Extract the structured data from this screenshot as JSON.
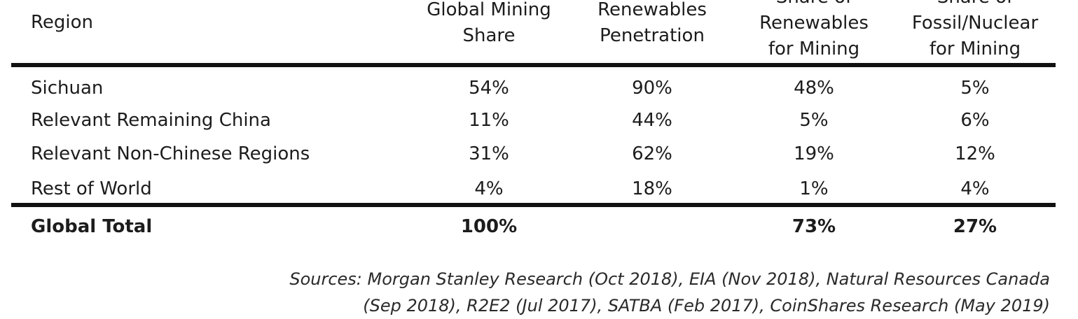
{
  "header": {
    "region": "Region",
    "global_mining_share": "Global Mining\nShare",
    "renewables_penetration": "Renewables\nPenetration",
    "share_renewables": "Share of\nRenewables\nfor Mining",
    "share_fossil": "Share of\nFossil/Nuclear\nfor Mining"
  },
  "rows": [
    {
      "region": "Sichuan",
      "mining_share": "54%",
      "renewables_penetration": "90%",
      "share_renewables": "48%",
      "share_fossil": "5%"
    },
    {
      "region": "Relevant Remaining China",
      "mining_share": "11%",
      "renewables_penetration": "44%",
      "share_renewables": "5%",
      "share_fossil": "6%"
    },
    {
      "region": "Relevant Non-Chinese Regions",
      "mining_share": "31%",
      "renewables_penetration": "62%",
      "share_renewables": "19%",
      "share_fossil": "12%"
    },
    {
      "region": "Rest of World",
      "mining_share": "4%",
      "renewables_penetration": "18%",
      "share_renewables": "1%",
      "share_fossil": "4%"
    }
  ],
  "total": {
    "region": "Global Total",
    "mining_share": "100%",
    "renewables_penetration": "",
    "share_renewables": "73%",
    "share_fossil": "27%"
  },
  "sources": "Sources: Morgan Stanley Research (Oct 2018), EIA (Nov 2018), Natural Resources Canada (Sep 2018), R2E2 (Jul 2017), SATBA (Feb 2017), CoinShares Research (May 2019)"
}
